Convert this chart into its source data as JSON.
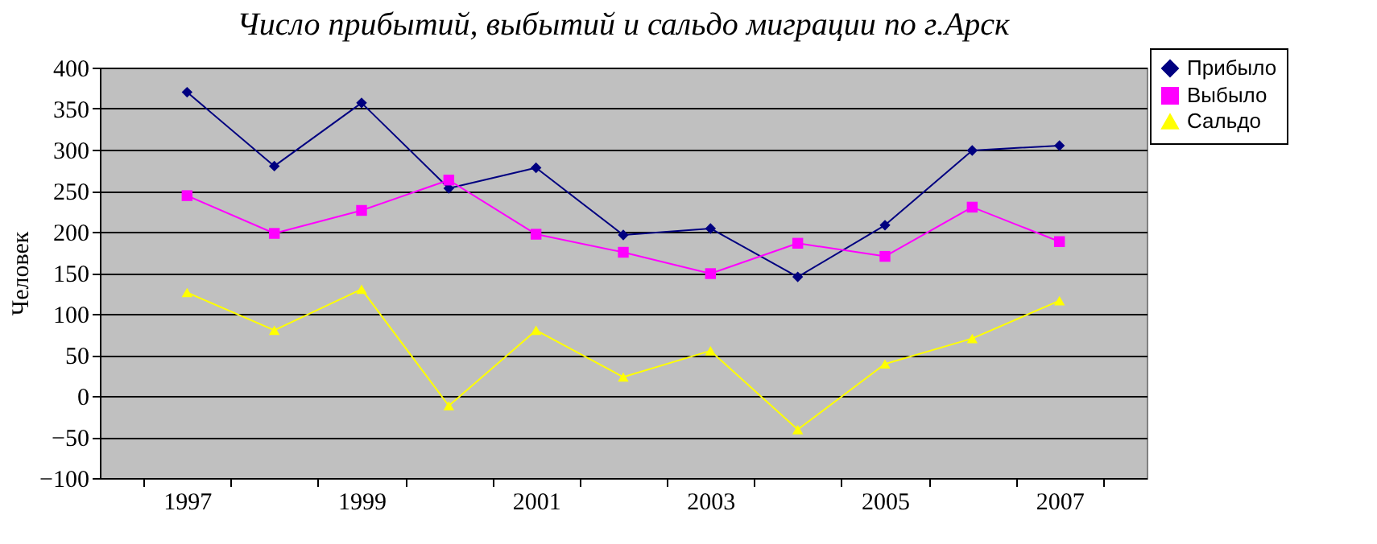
{
  "chart_data": {
    "type": "line",
    "title": "Число прибытий, выбытий и сальдо миграции по г.Арск",
    "ylabel": "Человек",
    "categories": [
      "1997",
      null,
      "1999",
      null,
      "2001",
      null,
      "2003",
      null,
      "2005",
      null,
      "2007"
    ],
    "series": [
      {
        "name": "Прибыло",
        "color": "#000080",
        "marker": "diamond",
        "values": [
          370,
          280,
          357,
          253,
          278,
          196,
          204,
          145,
          208,
          299,
          305
        ]
      },
      {
        "name": "Выбыло",
        "color": "#ff00ff",
        "marker": "square",
        "values": [
          244,
          198,
          226,
          263,
          197,
          175,
          149,
          186,
          170,
          230,
          188
        ]
      },
      {
        "name": "Сальдо",
        "color": "#ffff00",
        "marker": "triangle",
        "values": [
          126,
          80,
          130,
          -12,
          80,
          23,
          55,
          -41,
          39,
          70,
          116
        ]
      }
    ],
    "ylim": [
      -100,
      400
    ],
    "yticks": [
      -100,
      -50,
      0,
      50,
      100,
      150,
      200,
      250,
      300,
      350,
      400
    ],
    "grid": "y",
    "legend": "top right"
  }
}
